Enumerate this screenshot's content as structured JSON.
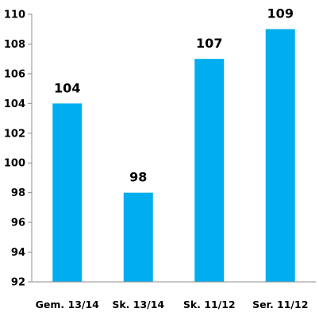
{
  "chart_data": {
    "type": "bar",
    "categories": [
      "Gem. 13/14",
      "Sk. 13/14",
      "Sk. 11/12",
      "Ser. 11/12"
    ],
    "values": [
      104,
      98,
      107,
      109
    ],
    "data_labels": [
      "104",
      "98",
      "107",
      "109"
    ],
    "ylim": [
      92,
      110
    ],
    "yticks": [
      92,
      94,
      96,
      98,
      100,
      102,
      104,
      106,
      108,
      110
    ],
    "ytick_labels": [
      "92",
      "94",
      "96",
      "98",
      "100",
      "102",
      "104",
      "106",
      "108",
      "110"
    ],
    "grid": false,
    "legend": "none",
    "colors": {
      "bar": "#00AEEF",
      "axis": "#8C8C8C"
    }
  }
}
